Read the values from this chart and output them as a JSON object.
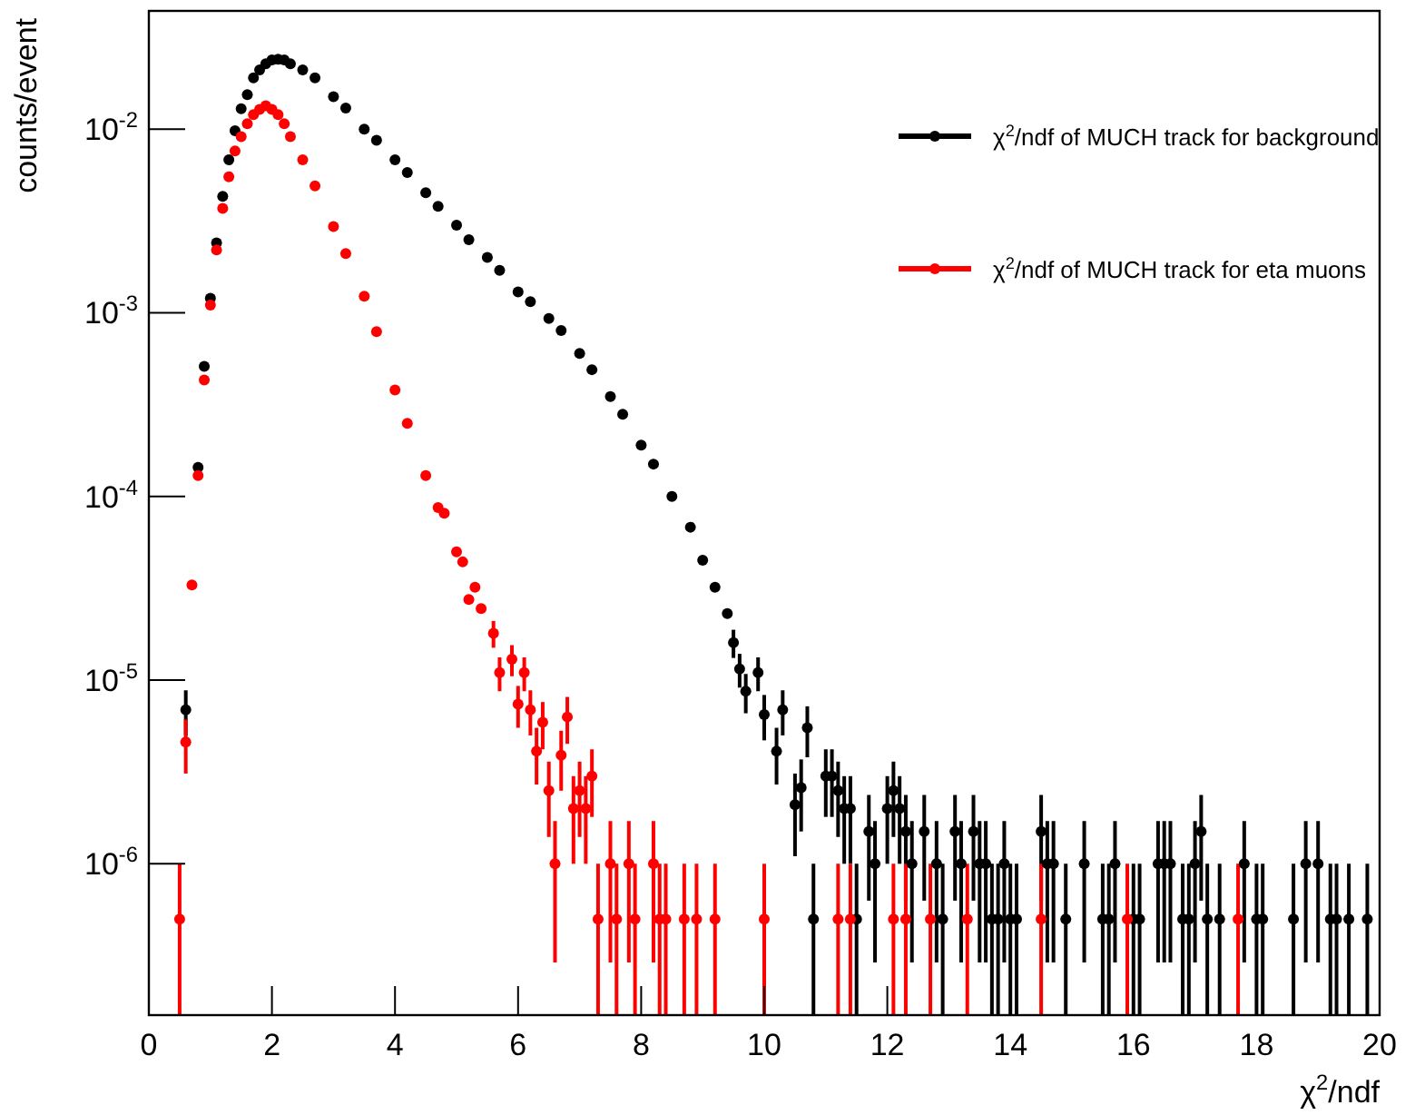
{
  "chart_data": {
    "type": "scatter",
    "xlabel": "χ$^{2}$/ndf",
    "ylabel": "counts/event",
    "log": "y",
    "xlim": [
      0,
      20
    ],
    "xticks": [
      0,
      2,
      4,
      6,
      8,
      10,
      12,
      14,
      16,
      18,
      20
    ],
    "ylim": [
      1.5e-07,
      0.044
    ],
    "yticks": [
      {
        "value": 1e-06,
        "label": "10$^{-6}$"
      },
      {
        "value": 1e-05,
        "label": "10$^{-5}$"
      },
      {
        "value": 0.0001,
        "label": "10$^{-4}$"
      },
      {
        "value": 0.001,
        "label": "10$^{-3}$"
      },
      {
        "value": 0.01,
        "label": "10$^{-2}$"
      }
    ],
    "grid": false,
    "legend": "top right",
    "marker": "circle",
    "series": [
      {
        "name": "χ$^{2}$/ndf of MUCH track for background",
        "color": "#000000",
        "x": [
          0.6,
          0.8,
          0.9,
          1.0,
          1.1,
          1.2,
          1.3,
          1.4,
          1.5,
          1.6,
          1.7,
          1.8,
          1.9,
          2.0,
          2.1,
          2.2,
          2.3,
          2.5,
          2.7,
          3.0,
          3.2,
          3.5,
          3.7,
          4.0,
          4.2,
          4.5,
          4.7,
          5.0,
          5.2,
          5.5,
          5.7,
          6.0,
          6.2,
          6.5,
          6.7,
          7.0,
          7.2,
          7.5,
          7.7,
          8.0,
          8.2,
          8.5,
          8.8,
          9.0,
          9.2,
          9.4,
          9.5,
          9.6,
          9.7,
          9.9,
          10.0,
          10.2,
          10.3,
          10.5,
          10.6,
          10.7,
          10.8,
          11.0,
          11.1,
          11.2,
          11.3,
          11.4,
          11.5,
          11.7,
          11.8,
          12.0,
          12.1,
          12.2,
          12.3,
          12.4,
          12.6,
          12.8,
          12.9,
          13.1,
          13.2,
          13.4,
          13.5,
          13.6,
          13.7,
          13.8,
          13.9,
          14.0,
          14.1,
          14.5,
          14.6,
          14.7,
          14.9,
          15.2,
          15.5,
          15.6,
          15.7,
          16.0,
          16.1,
          16.4,
          16.5,
          16.6,
          16.8,
          16.9,
          17.0,
          17.1,
          17.2,
          17.4,
          17.8,
          18.0,
          18.1,
          18.6,
          18.8,
          19.0,
          19.2,
          19.3,
          19.5,
          19.8
        ],
        "values": [
          6.9e-06,
          0.000144,
          0.00051,
          0.0012,
          0.0024,
          0.0043,
          0.0068,
          0.0098,
          0.0129,
          0.0154,
          0.019,
          0.021,
          0.0227,
          0.0238,
          0.024,
          0.0238,
          0.0227,
          0.021,
          0.019,
          0.015,
          0.013,
          0.01,
          0.0087,
          0.0068,
          0.0058,
          0.0045,
          0.0038,
          0.003,
          0.0025,
          0.002,
          0.0017,
          0.0013,
          0.00115,
          0.00093,
          0.0008,
          0.0006,
          0.00049,
          0.00035,
          0.00028,
          0.00019,
          0.00015,
          0.0001,
          6.8e-05,
          4.5e-05,
          3.2e-05,
          2.3e-05,
          1.6e-05,
          1.15e-05,
          8.7e-06,
          1.1e-05,
          6.5e-06,
          4.1e-06,
          6.9e-06,
          2.1e-06,
          2.6e-06,
          5.5e-06,
          5e-07,
          3e-06,
          3e-06,
          2.5e-06,
          2e-06,
          2e-06,
          5e-07,
          1.5e-06,
          1e-06,
          2e-06,
          2.5e-06,
          2e-06,
          1.5e-06,
          1e-06,
          1.5e-06,
          1e-06,
          5e-07,
          1.5e-06,
          1e-06,
          1.5e-06,
          1e-06,
          1e-06,
          5e-07,
          5e-07,
          1e-06,
          5e-07,
          5e-07,
          1.5e-06,
          1e-06,
          1e-06,
          5e-07,
          1e-06,
          5e-07,
          5e-07,
          1e-06,
          5e-07,
          5e-07,
          1e-06,
          1e-06,
          1e-06,
          5e-07,
          5e-07,
          1e-06,
          1.5e-06,
          5e-07,
          5e-07,
          1e-06,
          5e-07,
          5e-07,
          5e-07,
          1e-06,
          1e-06,
          5e-07,
          5e-07,
          5e-07,
          5e-07
        ],
        "errors": [
          1.9e-06,
          null,
          null,
          null,
          null,
          null,
          null,
          null,
          null,
          null,
          null,
          null,
          null,
          null,
          null,
          null,
          null,
          null,
          null,
          null,
          null,
          null,
          null,
          null,
          null,
          null,
          null,
          null,
          null,
          null,
          null,
          null,
          null,
          null,
          null,
          null,
          null,
          null,
          null,
          null,
          null,
          null,
          null,
          null,
          null,
          null,
          2.8e-06,
          2.4e-06,
          2.1e-06,
          2.3e-06,
          1.8e-06,
          1.4e-06,
          1.9e-06,
          1e-06,
          1.1e-06,
          1.7e-06,
          [
            1.5e-07,
            1e-06
          ],
          1.2e-06,
          1.2e-06,
          1.1e-06,
          1e-06,
          1e-06,
          [
            1.5e-07,
            1e-06
          ],
          8.7e-07,
          7.1e-07,
          1e-06,
          1.1e-06,
          1e-06,
          8.7e-07,
          7.1e-07,
          8.7e-07,
          7.1e-07,
          [
            1.5e-07,
            1e-06
          ],
          8.7e-07,
          7.1e-07,
          8.7e-07,
          7.1e-07,
          7.1e-07,
          [
            1.5e-07,
            1e-06
          ],
          [
            1.5e-07,
            1e-06
          ],
          7.1e-07,
          [
            1.5e-07,
            1e-06
          ],
          [
            1.5e-07,
            1e-06
          ],
          8.7e-07,
          7.1e-07,
          7.1e-07,
          [
            1.5e-07,
            1e-06
          ],
          7.1e-07,
          [
            1.5e-07,
            1e-06
          ],
          [
            1.5e-07,
            1e-06
          ],
          7.1e-07,
          [
            1.5e-07,
            1e-06
          ],
          [
            1.5e-07,
            1e-06
          ],
          7.1e-07,
          7.1e-07,
          7.1e-07,
          [
            1.5e-07,
            1e-06
          ],
          [
            1.5e-07,
            1e-06
          ],
          7.1e-07,
          8.7e-07,
          [
            1.5e-07,
            1e-06
          ],
          [
            1.5e-07,
            1e-06
          ],
          7.1e-07,
          [
            1.5e-07,
            1e-06
          ],
          [
            1.5e-07,
            1e-06
          ],
          [
            1.5e-07,
            1e-06
          ],
          7.1e-07,
          7.1e-07,
          [
            1.5e-07,
            1e-06
          ],
          [
            1.5e-07,
            1e-06
          ],
          [
            1.5e-07,
            1e-06
          ],
          [
            1.5e-07,
            1e-06
          ]
        ]
      },
      {
        "name": "χ$^{2}$/ndf of MUCH track for eta muons",
        "color": "#ff0000",
        "x": [
          0.5,
          0.6,
          0.7,
          0.8,
          0.9,
          1.0,
          1.1,
          1.2,
          1.3,
          1.4,
          1.5,
          1.6,
          1.7,
          1.8,
          1.9,
          2.0,
          2.1,
          2.2,
          2.3,
          2.5,
          2.7,
          3.0,
          3.2,
          3.5,
          3.7,
          4.0,
          4.2,
          4.5,
          4.7,
          4.8,
          5.0,
          5.1,
          5.2,
          5.3,
          5.4,
          5.6,
          5.7,
          5.9,
          6.0,
          6.1,
          6.2,
          6.3,
          6.4,
          6.5,
          6.6,
          6.7,
          6.8,
          6.9,
          7.0,
          7.1,
          7.2,
          7.3,
          7.5,
          7.6,
          7.8,
          7.9,
          8.2,
          8.3,
          8.4,
          8.7,
          8.9,
          9.2,
          10.0,
          11.2,
          11.4,
          12.1,
          12.3,
          12.7,
          13.3,
          14.5,
          15.9,
          17.7
        ],
        "values": [
          5e-07,
          4.6e-06,
          3.3e-05,
          0.00013,
          0.00043,
          0.0011,
          0.0022,
          0.0037,
          0.0055,
          0.0076,
          0.0091,
          0.0107,
          0.012,
          0.0128,
          0.0134,
          0.0128,
          0.012,
          0.0107,
          0.0091,
          0.0068,
          0.0049,
          0.00295,
          0.0021,
          0.00123,
          0.00079,
          0.00038,
          0.00025,
          0.00013,
          8.7e-05,
          8.1e-05,
          5e-05,
          4.4e-05,
          2.75e-05,
          3.2e-05,
          2.45e-05,
          1.8e-05,
          1.1e-05,
          1.3e-05,
          7.4e-06,
          1.1e-05,
          6.9e-06,
          4.1e-06,
          5.9e-06,
          2.5e-06,
          1e-06,
          3.9e-06,
          6.3e-06,
          2e-06,
          2.5e-06,
          2e-06,
          3e-06,
          5e-07,
          1e-06,
          5e-07,
          1e-06,
          5e-07,
          1e-06,
          5e-07,
          5e-07,
          5e-07,
          5e-07,
          5e-07,
          5e-07,
          5e-07,
          5e-07,
          5e-07,
          5e-07,
          5e-07,
          5e-07,
          5e-07,
          5e-07,
          5e-07
        ],
        "errors": [
          [
            1.5e-07,
            1e-06
          ],
          1.5e-06,
          null,
          null,
          null,
          null,
          null,
          null,
          null,
          null,
          null,
          null,
          null,
          null,
          null,
          null,
          null,
          null,
          null,
          null,
          null,
          null,
          null,
          null,
          null,
          null,
          null,
          null,
          null,
          null,
          null,
          null,
          null,
          null,
          null,
          3e-06,
          2.3e-06,
          2.5e-06,
          1.9e-06,
          2.3e-06,
          1.9e-06,
          1.4e-06,
          1.7e-06,
          1.1e-06,
          7.1e-07,
          1.4e-06,
          1.8e-06,
          1e-06,
          1.1e-06,
          1e-06,
          1.2e-06,
          [
            1.5e-07,
            1e-06
          ],
          7.1e-07,
          [
            1.5e-07,
            1e-06
          ],
          7.1e-07,
          [
            1.5e-07,
            1e-06
          ],
          7.1e-07,
          [
            1.5e-07,
            1e-06
          ],
          [
            1.5e-07,
            1e-06
          ],
          [
            1.5e-07,
            1e-06
          ],
          [
            1.5e-07,
            1e-06
          ],
          [
            1.5e-07,
            1e-06
          ],
          [
            1.5e-07,
            1e-06
          ],
          [
            1.5e-07,
            1e-06
          ],
          [
            1.5e-07,
            1e-06
          ],
          [
            1.5e-07,
            1e-06
          ],
          [
            1.5e-07,
            1e-06
          ],
          [
            1.5e-07,
            1e-06
          ],
          [
            1.5e-07,
            1e-06
          ],
          [
            1.5e-07,
            1e-06
          ],
          [
            1.5e-07,
            1e-06
          ],
          [
            1.5e-07,
            1e-06
          ]
        ]
      }
    ]
  }
}
